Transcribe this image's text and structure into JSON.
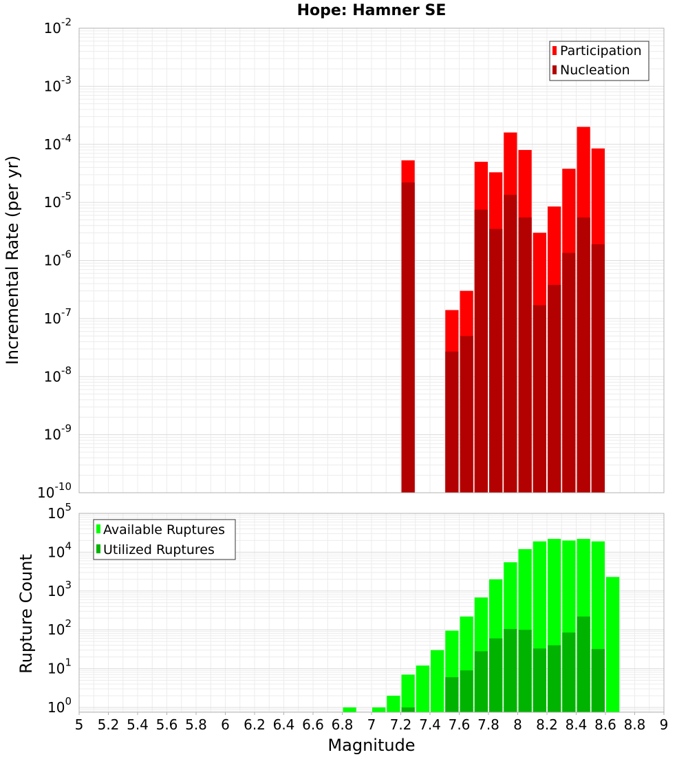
{
  "chart_data": [
    {
      "type": "bar",
      "title": "Hope: Hamner SE",
      "ylabel": "Incremental Rate (per yr)",
      "xlabel": "",
      "yscale": "log",
      "ylim": [
        1e-10,
        0.01
      ],
      "xlim": [
        5,
        9
      ],
      "y_tick_bases": [
        "10",
        "10",
        "10",
        "10",
        "10",
        "10",
        "10",
        "10",
        "10"
      ],
      "y_tick_exponents": [
        "-10",
        "-9",
        "-8",
        "-7",
        "-6",
        "-5",
        "-4",
        "-3",
        "-2"
      ],
      "bin_width": 0.1,
      "x": [
        7.25,
        7.55,
        7.65,
        7.75,
        7.85,
        7.95,
        8.05,
        8.15,
        8.25,
        8.35,
        8.45,
        8.55
      ],
      "series": [
        {
          "name": "Participation",
          "color": "#ff0000",
          "values": [
            5.3e-05,
            1.4e-07,
            3e-07,
            5e-05,
            3.3e-05,
            0.00016,
            8e-05,
            3e-06,
            8.5e-06,
            3.8e-05,
            0.0002,
            8.5e-05
          ]
        },
        {
          "name": "Nucleation",
          "color": "#b30000",
          "values": [
            2.2e-05,
            2.7e-08,
            5e-08,
            7.5e-06,
            3.5e-06,
            1.35e-05,
            5.5e-06,
            1.7e-07,
            3.8e-07,
            1.35e-06,
            5.5e-06,
            1.9e-06
          ]
        }
      ],
      "legend": [
        "Participation",
        "Nucleation"
      ],
      "legend_position": "top-right",
      "grid": true
    },
    {
      "type": "bar",
      "title": "",
      "ylabel": "Rupture Count",
      "xlabel": "Magnitude",
      "yscale": "log",
      "ylim": [
        0.75,
        100000.0
      ],
      "xlim": [
        5,
        9
      ],
      "x_ticks": [
        "5",
        "5.2",
        "5.4",
        "5.6",
        "5.8",
        "6",
        "6.2",
        "6.4",
        "6.6",
        "6.8",
        "7",
        "7.2",
        "7.4",
        "7.6",
        "7.8",
        "8",
        "8.2",
        "8.4",
        "8.6",
        "8.8",
        "9"
      ],
      "y_tick_bases": [
        "10",
        "10",
        "10",
        "10",
        "10",
        "10"
      ],
      "y_tick_exponents": [
        "0",
        "1",
        "2",
        "3",
        "4",
        "5"
      ],
      "bin_width": 0.1,
      "x": [
        6.85,
        7.05,
        7.15,
        7.25,
        7.35,
        7.45,
        7.55,
        7.65,
        7.75,
        7.85,
        7.95,
        8.05,
        8.15,
        8.25,
        8.35,
        8.45,
        8.55,
        8.65
      ],
      "series": [
        {
          "name": "Available Ruptures",
          "color": "#00ff00",
          "values": [
            1,
            1,
            2,
            7,
            12,
            30,
            95,
            220,
            680,
            2000,
            5500,
            12000,
            19000,
            22000,
            20000,
            22000,
            19000,
            2300
          ]
        },
        {
          "name": "Utilized Ruptures",
          "color": "#00b300",
          "values": [
            0,
            0,
            0,
            1,
            0,
            0,
            6,
            9,
            28,
            60,
            105,
            100,
            33,
            40,
            85,
            220,
            32,
            0
          ]
        }
      ],
      "legend": [
        "Available Ruptures",
        "Utilized Ruptures"
      ],
      "legend_position": "top-left",
      "grid": true
    }
  ]
}
